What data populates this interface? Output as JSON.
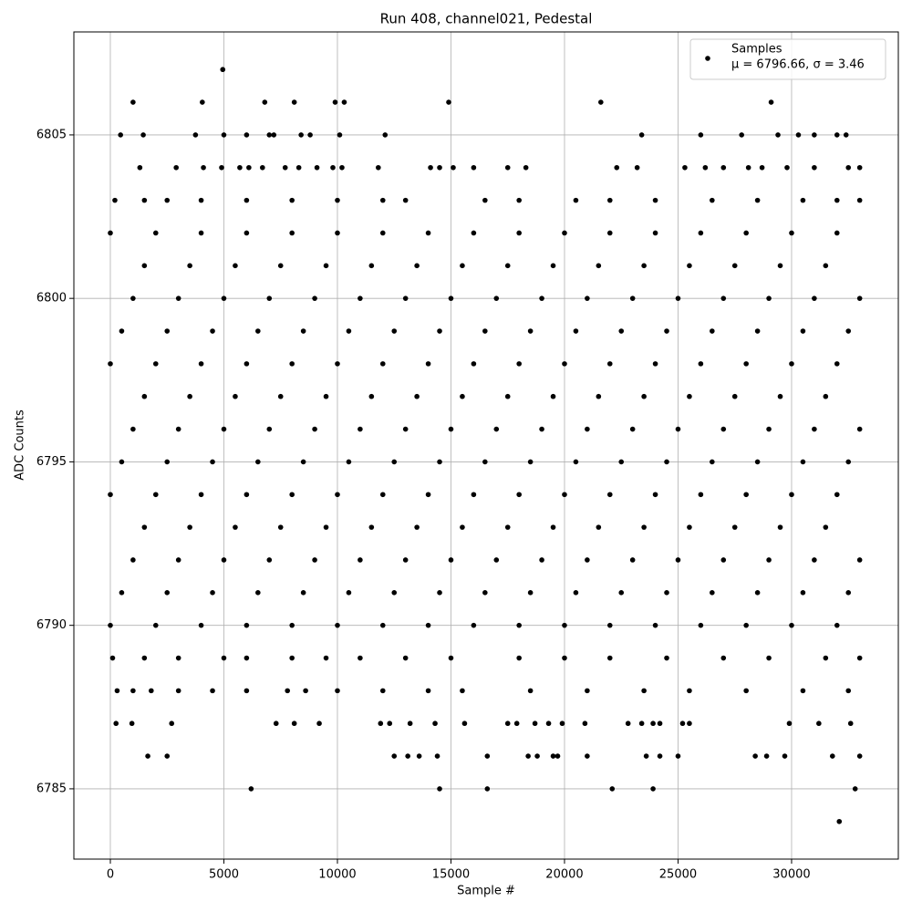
{
  "chart_data": {
    "type": "scatter",
    "title": "Run 408, channel021, Pedestal",
    "x_label": "Sample #",
    "y_label": "ADC Counts",
    "legend": "upper right",
    "legend_stats": "μ = 6796.66, σ = 3.46",
    "grid": true,
    "xlim": [
      -1606,
      34700
    ],
    "ylim": [
      6782.85,
      6808.15
    ],
    "xticks": [
      0,
      5000,
      10000,
      15000,
      20000,
      25000,
      30000
    ],
    "yticks": [
      6785,
      6790,
      6795,
      6800,
      6805
    ],
    "x": [
      0,
      2000,
      4000,
      6000,
      8000,
      10000,
      12000,
      14000,
      16000,
      18000,
      20000,
      22000,
      24000,
      26000,
      28000,
      30000,
      32000,
      500,
      2500,
      4500,
      6500,
      8500,
      10500,
      12500,
      14500,
      16500,
      18500,
      20500,
      22500,
      24500,
      26500,
      28500,
      30500,
      32500,
      1000,
      3000,
      5000,
      7000,
      9000,
      11000,
      13000,
      15000,
      17000,
      19000,
      21000,
      23000,
      25000,
      27000,
      29000,
      31000,
      33000,
      1500,
      3500,
      5500,
      7500,
      9500,
      11500,
      13500,
      15500,
      17500,
      19500,
      21500,
      23500,
      25500,
      27500,
      29500,
      31500,
      0,
      2000,
      4000,
      6000,
      8000,
      10000,
      12000,
      14000,
      16000,
      18000,
      20000,
      22000,
      24000,
      26000,
      28000,
      30000,
      32000,
      500,
      2500,
      4500,
      6500,
      8500,
      10500,
      12500,
      14500,
      16500,
      18500,
      20500,
      22500,
      24500,
      26500,
      28500,
      30500,
      32500,
      1000,
      3000,
      5000,
      7000,
      9000,
      11000,
      13000,
      15000,
      17000,
      19000,
      21000,
      23000,
      25000,
      27000,
      29000,
      31000,
      33000,
      1500,
      3500,
      5500,
      7500,
      9500,
      11500,
      13500,
      15500,
      17500,
      19500,
      21500,
      23500,
      25500,
      27500,
      29500,
      31500,
      0,
      2000,
      4000,
      6000,
      8000,
      10000,
      12000,
      14000,
      16000,
      18000,
      20000,
      22000,
      24000,
      26000,
      28000,
      30000,
      32000,
      500,
      2500,
      4500,
      6500,
      8500,
      10500,
      12500,
      14500,
      16500,
      18500,
      20500,
      22500,
      24500,
      26500,
      28500,
      30500,
      32500,
      1000,
      3000,
      5000,
      7000,
      9000,
      11000,
      13000,
      15000,
      17000,
      19000,
      21000,
      23000,
      25000,
      27000,
      29000,
      31000,
      33000,
      1500,
      3500,
      5500,
      7500,
      9500,
      11500,
      13500,
      15500,
      17500,
      19500,
      21500,
      23500,
      25500,
      27500,
      29500,
      31500,
      0,
      2000,
      4000,
      6000,
      8000,
      10000,
      12000,
      14000,
      16000,
      18000,
      20000,
      22000,
      24000,
      26000,
      28000,
      30000,
      32000,
      4950,
      1000,
      4050,
      6800,
      8100,
      9900,
      10300,
      14900,
      21600,
      29100,
      450,
      1450,
      3750,
      5000,
      6000,
      7000,
      7200,
      8400,
      8800,
      10100,
      12100,
      23400,
      26000,
      27800,
      29400,
      30300,
      31000,
      32000,
      32400,
      1300,
      2900,
      4100,
      4900,
      5700,
      6100,
      6700,
      7700,
      8300,
      9100,
      9800,
      10200,
      11800,
      14100,
      14500,
      15100,
      16000,
      17500,
      18300,
      22300,
      23200,
      25300,
      26200,
      27000,
      28100,
      28700,
      29800,
      31000,
      32500,
      33000,
      200,
      1500,
      2500,
      4000,
      6000,
      8000,
      10000,
      12000,
      13000,
      16500,
      18000,
      20500,
      22000,
      24000,
      26500,
      28500,
      30500,
      32000,
      33000,
      100,
      1500,
      3000,
      5000,
      6000,
      8000,
      9500,
      11000,
      13000,
      15000,
      18000,
      20000,
      22000,
      24500,
      27000,
      29000,
      31500,
      33000,
      300,
      1000,
      1800,
      3000,
      4500,
      6000,
      7800,
      8600,
      10000,
      12000,
      14000,
      15500,
      18500,
      21000,
      23500,
      25500,
      28000,
      30500,
      32500,
      250,
      950,
      2700,
      7300,
      8100,
      9200,
      11900,
      12300,
      13200,
      14300,
      15600,
      17500,
      17900,
      18700,
      19300,
      19900,
      20900,
      22800,
      23400,
      23900,
      24200,
      25200,
      25500,
      29900,
      31200,
      32600,
      1650,
      2500,
      12500,
      13100,
      13600,
      14400,
      16600,
      18400,
      18800,
      19500,
      19700,
      21000,
      23600,
      24200,
      25000,
      28400,
      28900,
      29700,
      31800,
      33000,
      6200,
      14500,
      16600,
      22100,
      23900,
      32800,
      32100
    ],
    "series": [
      {
        "name": "Samples",
        "color": "#000000",
        "values": [
          6790,
          6790,
          6790,
          6790,
          6790,
          6790,
          6790,
          6790,
          6790,
          6790,
          6790,
          6790,
          6790,
          6790,
          6790,
          6790,
          6790,
          6791,
          6791,
          6791,
          6791,
          6791,
          6791,
          6791,
          6791,
          6791,
          6791,
          6791,
          6791,
          6791,
          6791,
          6791,
          6791,
          6791,
          6792,
          6792,
          6792,
          6792,
          6792,
          6792,
          6792,
          6792,
          6792,
          6792,
          6792,
          6792,
          6792,
          6792,
          6792,
          6792,
          6792,
          6793,
          6793,
          6793,
          6793,
          6793,
          6793,
          6793,
          6793,
          6793,
          6793,
          6793,
          6793,
          6793,
          6793,
          6793,
          6793,
          6794,
          6794,
          6794,
          6794,
          6794,
          6794,
          6794,
          6794,
          6794,
          6794,
          6794,
          6794,
          6794,
          6794,
          6794,
          6794,
          6794,
          6795,
          6795,
          6795,
          6795,
          6795,
          6795,
          6795,
          6795,
          6795,
          6795,
          6795,
          6795,
          6795,
          6795,
          6795,
          6795,
          6795,
          6796,
          6796,
          6796,
          6796,
          6796,
          6796,
          6796,
          6796,
          6796,
          6796,
          6796,
          6796,
          6796,
          6796,
          6796,
          6796,
          6796,
          6797,
          6797,
          6797,
          6797,
          6797,
          6797,
          6797,
          6797,
          6797,
          6797,
          6797,
          6797,
          6797,
          6797,
          6797,
          6797,
          6798,
          6798,
          6798,
          6798,
          6798,
          6798,
          6798,
          6798,
          6798,
          6798,
          6798,
          6798,
          6798,
          6798,
          6798,
          6798,
          6798,
          6799,
          6799,
          6799,
          6799,
          6799,
          6799,
          6799,
          6799,
          6799,
          6799,
          6799,
          6799,
          6799,
          6799,
          6799,
          6799,
          6799,
          6800,
          6800,
          6800,
          6800,
          6800,
          6800,
          6800,
          6800,
          6800,
          6800,
          6800,
          6800,
          6800,
          6800,
          6800,
          6800,
          6800,
          6801,
          6801,
          6801,
          6801,
          6801,
          6801,
          6801,
          6801,
          6801,
          6801,
          6801,
          6801,
          6801,
          6801,
          6801,
          6801,
          6802,
          6802,
          6802,
          6802,
          6802,
          6802,
          6802,
          6802,
          6802,
          6802,
          6802,
          6802,
          6802,
          6802,
          6802,
          6802,
          6802,
          6807,
          6806,
          6806,
          6806,
          6806,
          6806,
          6806,
          6806,
          6806,
          6806,
          6805,
          6805,
          6805,
          6805,
          6805,
          6805,
          6805,
          6805,
          6805,
          6805,
          6805,
          6805,
          6805,
          6805,
          6805,
          6805,
          6805,
          6805,
          6805,
          6804,
          6804,
          6804,
          6804,
          6804,
          6804,
          6804,
          6804,
          6804,
          6804,
          6804,
          6804,
          6804,
          6804,
          6804,
          6804,
          6804,
          6804,
          6804,
          6804,
          6804,
          6804,
          6804,
          6804,
          6804,
          6804,
          6804,
          6804,
          6804,
          6804,
          6803,
          6803,
          6803,
          6803,
          6803,
          6803,
          6803,
          6803,
          6803,
          6803,
          6803,
          6803,
          6803,
          6803,
          6803,
          6803,
          6803,
          6803,
          6803,
          6789,
          6789,
          6789,
          6789,
          6789,
          6789,
          6789,
          6789,
          6789,
          6789,
          6789,
          6789,
          6789,
          6789,
          6789,
          6789,
          6789,
          6789,
          6788,
          6788,
          6788,
          6788,
          6788,
          6788,
          6788,
          6788,
          6788,
          6788,
          6788,
          6788,
          6788,
          6788,
          6788,
          6788,
          6788,
          6788,
          6788,
          6787,
          6787,
          6787,
          6787,
          6787,
          6787,
          6787,
          6787,
          6787,
          6787,
          6787,
          6787,
          6787,
          6787,
          6787,
          6787,
          6787,
          6787,
          6787,
          6787,
          6787,
          6787,
          6787,
          6787,
          6787,
          6787,
          6786,
          6786,
          6786,
          6786,
          6786,
          6786,
          6786,
          6786,
          6786,
          6786,
          6786,
          6786,
          6786,
          6786,
          6786,
          6786,
          6786,
          6786,
          6786,
          6786,
          6785,
          6785,
          6785,
          6785,
          6785,
          6785,
          6784
        ]
      }
    ]
  }
}
